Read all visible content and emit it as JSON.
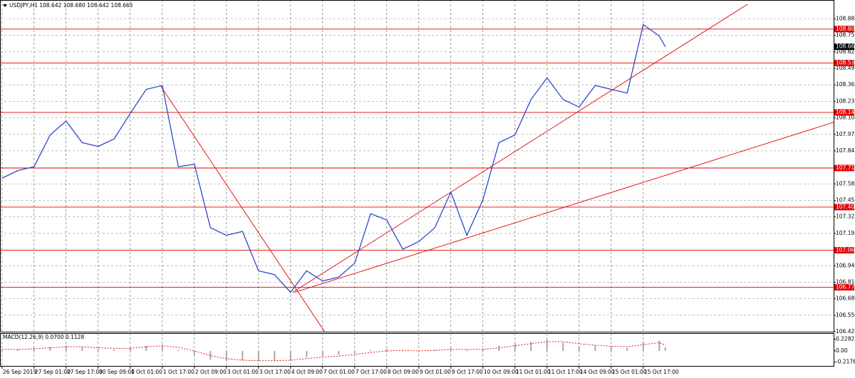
{
  "chart_data": [
    {
      "type": "line",
      "title": "USDJPY,H1  108.642 108.680 108.642 108.665",
      "x": [
        0,
        8,
        16,
        24,
        32,
        40,
        48,
        56,
        64,
        72,
        80,
        88,
        96,
        104,
        112,
        120,
        128,
        136,
        144,
        152,
        160,
        168,
        176,
        184,
        192,
        200,
        208,
        216,
        224,
        232,
        240,
        248,
        256,
        264,
        272,
        280,
        288,
        296,
        304,
        312,
        320,
        328,
        331
      ],
      "values": [
        107.63,
        107.69,
        107.72,
        107.97,
        108.08,
        107.91,
        107.88,
        107.94,
        108.14,
        108.33,
        108.36,
        107.72,
        107.74,
        107.24,
        107.18,
        107.21,
        106.9,
        106.87,
        106.73,
        106.9,
        106.82,
        106.85,
        106.96,
        107.35,
        107.3,
        107.07,
        107.13,
        107.24,
        107.52,
        107.18,
        107.46,
        107.91,
        107.97,
        108.25,
        108.42,
        108.25,
        108.19,
        108.36,
        108.33,
        108.3,
        108.84,
        108.75,
        108.665
      ],
      "color": "#1e3cc8",
      "xlim": [
        -1,
        415
      ],
      "ylim": [
        106.42,
        109.0
      ],
      "yticks": [
        {
          "value": 106.42,
          "label": "106.420"
        },
        {
          "value": 106.55,
          "label": "106.550"
        },
        {
          "value": 106.68,
          "label": "106.680"
        },
        {
          "value": 106.81,
          "label": "106.810"
        },
        {
          "value": 106.94,
          "label": "106.940"
        },
        107.195,
        107.325,
        107.455,
        107.585,
        107.845,
        107.975,
        108.105,
        108.235,
        108.365,
        108.495,
        108.625,
        108.755,
        108.885
      ],
      "xticks": [
        {
          "value": 0,
          "label": "26 Sep 2019"
        },
        {
          "value": 16,
          "label": "27 Sep 01:00"
        },
        {
          "value": 32,
          "label": "27 Sep 17:00"
        },
        {
          "value": 48,
          "label": "30 Sep 09:00"
        },
        {
          "value": 64,
          "label": "1 Oct 01:00"
        },
        {
          "value": 80,
          "label": "1 Oct 17:00"
        },
        {
          "value": 96,
          "label": "2 Oct 09:00"
        },
        {
          "value": 112,
          "label": "3 Oct 01:00"
        },
        {
          "value": 128,
          "label": "3 Oct 17:00"
        },
        {
          "value": 144,
          "label": "4 Oct 09:00"
        },
        {
          "value": 160,
          "label": "7 Oct 01:00"
        },
        {
          "value": 176,
          "label": "7 Oct 17:00"
        },
        {
          "value": 192,
          "label": "8 Oct 09:00"
        },
        {
          "value": 208,
          "label": "9 Oct 01:00"
        },
        {
          "value": 224,
          "label": "9 Oct 17:00"
        },
        {
          "value": 240,
          "label": "10 Oct 09:00"
        },
        {
          "value": 256,
          "label": "11 Oct 01:00"
        },
        {
          "value": 272,
          "label": "11 Oct 17:00"
        },
        {
          "value": 288,
          "label": "14 Oct 09:00"
        },
        {
          "value": 304,
          "label": "15 Oct 01:00"
        },
        {
          "value": 320,
          "label": "15 Oct 17:00"
        }
      ],
      "grid": true,
      "levels": [
        108.805,
        108.537,
        108.148,
        {
          "value": 107.71,
          "label": "107.710"
        },
        107.402,
        107.062,
        {
          "value": 106.77,
          "label": "106.770"
        }
      ],
      "level_color": "#e00000",
      "last_price": 108.665,
      "trend_lines": [
        {
          "x": [
            145,
            372
          ],
          "y": [
            106.73,
            109.0
          ]
        },
        {
          "x": [
            146,
            415
          ],
          "y": [
            106.73,
            108.07
          ]
        },
        {
          "x": [
            79,
            161
          ],
          "y": [
            108.36,
            106.42
          ]
        }
      ]
    },
    {
      "type": "bar",
      "title": "MACD(12,26,9) 0.0700 0.1128",
      "x": [
        0,
        8,
        16,
        24,
        32,
        40,
        48,
        56,
        64,
        72,
        80,
        88,
        96,
        104,
        112,
        120,
        128,
        136,
        144,
        152,
        160,
        168,
        176,
        184,
        192,
        200,
        208,
        216,
        224,
        232,
        240,
        248,
        256,
        264,
        272,
        280,
        288,
        296,
        304,
        312,
        320,
        328,
        331
      ],
      "values": [
        0.02,
        0.03,
        0.05,
        0.08,
        0.1,
        0.08,
        0.04,
        0.03,
        0.06,
        0.1,
        0.12,
        0.02,
        -0.08,
        -0.17,
        -0.2,
        -0.18,
        -0.2,
        -0.19,
        -0.17,
        -0.12,
        -0.1,
        -0.08,
        -0.05,
        0.02,
        0.04,
        -0.01,
        0.0,
        0.02,
        0.05,
        0.02,
        0.04,
        0.1,
        0.14,
        0.18,
        0.22,
        0.16,
        0.1,
        0.1,
        0.08,
        0.06,
        0.18,
        0.2,
        0.07
      ],
      "color": "#a8a8a8",
      "signal": [
        0.03,
        0.03,
        0.04,
        0.06,
        0.08,
        0.08,
        0.06,
        0.05,
        0.05,
        0.08,
        0.1,
        0.07,
        0.0,
        -0.09,
        -0.15,
        -0.18,
        -0.19,
        -0.19,
        -0.18,
        -0.15,
        -0.12,
        -0.1,
        -0.07,
        -0.03,
        0.0,
        0.01,
        0.0,
        0.01,
        0.03,
        0.03,
        0.03,
        0.06,
        0.1,
        0.14,
        0.18,
        0.18,
        0.14,
        0.11,
        0.09,
        0.08,
        0.12,
        0.16,
        0.1128
      ],
      "signal_color": "#e00000",
      "xlim": [
        -1,
        415
      ],
      "ylim": [
        -0.29,
        0.33
      ],
      "yticks": [
        0.2282,
        {
          "value": 0,
          "label": "0.00"
        },
        -0.2176
      ]
    }
  ]
}
